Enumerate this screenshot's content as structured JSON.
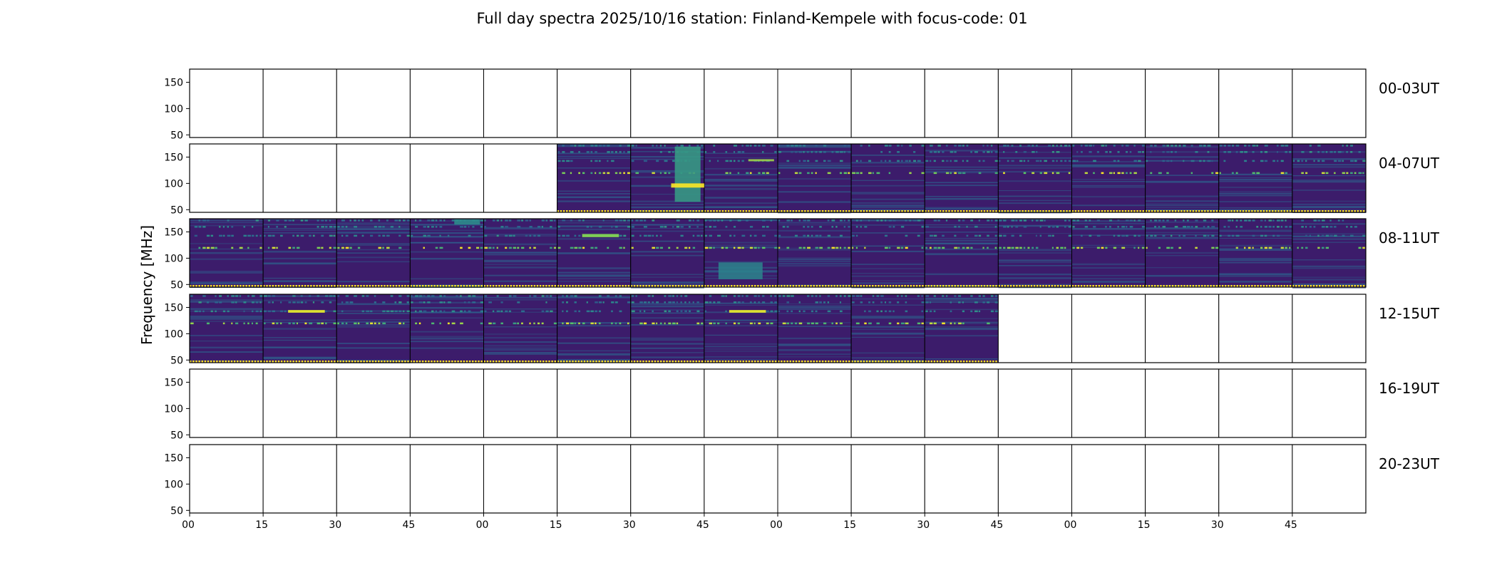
{
  "chart_data": {
    "type": "heatmap",
    "title": "Full day spectra 2025/10/16 station: Finland-Kempele with focus-code: 01",
    "xlabel": "",
    "ylabel": "Frequency [MHz]",
    "ylim": [
      45,
      175
    ],
    "yticks": [
      50,
      100,
      150
    ],
    "xticks": [
      "00",
      "15",
      "30",
      "45",
      "00",
      "15",
      "30",
      "45",
      "00",
      "15",
      "30",
      "45",
      "00",
      "15",
      "30",
      "45"
    ],
    "rows": [
      {
        "label": "00-03UT",
        "cells": [
          0,
          0,
          0,
          0,
          0,
          0,
          0,
          0,
          0,
          0,
          0,
          0,
          0,
          0,
          0,
          0
        ]
      },
      {
        "label": "04-07UT",
        "cells": [
          0,
          0,
          0,
          0,
          0,
          1,
          1,
          1,
          1,
          1,
          1,
          1,
          1,
          1,
          1,
          1
        ]
      },
      {
        "label": "08-11UT",
        "cells": [
          1,
          1,
          1,
          1,
          1,
          1,
          1,
          1,
          1,
          1,
          1,
          1,
          1,
          1,
          1,
          1
        ]
      },
      {
        "label": "12-15UT",
        "cells": [
          1,
          1,
          1,
          1,
          1,
          1,
          1,
          1,
          1,
          1,
          1,
          0,
          0,
          0,
          0,
          0
        ]
      },
      {
        "label": "16-19UT",
        "cells": [
          0,
          0,
          0,
          0,
          0,
          0,
          0,
          0,
          0,
          0,
          0,
          0,
          0,
          0,
          0,
          0
        ]
      },
      {
        "label": "20-23UT",
        "cells": [
          0,
          0,
          0,
          0,
          0,
          0,
          0,
          0,
          0,
          0,
          0,
          0,
          0,
          0,
          0,
          0
        ]
      }
    ],
    "persistent_bands_mhz": [
      120,
      143,
      160,
      172
    ],
    "bursts": [
      {
        "row": 1,
        "col": 6,
        "fmin": 65,
        "fmax": 170,
        "level": 0.55
      },
      {
        "row": 1,
        "col": 6,
        "fmin": 92,
        "fmax": 100,
        "level": 1.0
      },
      {
        "row": 1,
        "col": 7,
        "fmin": 142,
        "fmax": 146,
        "level": 0.85
      },
      {
        "row": 2,
        "col": 5,
        "fmin": 140,
        "fmax": 146,
        "level": 0.8
      },
      {
        "row": 2,
        "col": 7,
        "fmin": 60,
        "fmax": 92,
        "level": 0.45
      },
      {
        "row": 2,
        "col": 3,
        "fmin": 164,
        "fmax": 174,
        "level": 0.5
      },
      {
        "row": 3,
        "col": 1,
        "fmin": 140,
        "fmax": 145,
        "level": 0.95
      },
      {
        "row": 3,
        "col": 7,
        "fmin": 140,
        "fmax": 145,
        "level": 0.95
      }
    ],
    "colormap": {
      "low": "#3b1f6e",
      "mid": "#2c8c8c",
      "high": "#fde725"
    }
  }
}
